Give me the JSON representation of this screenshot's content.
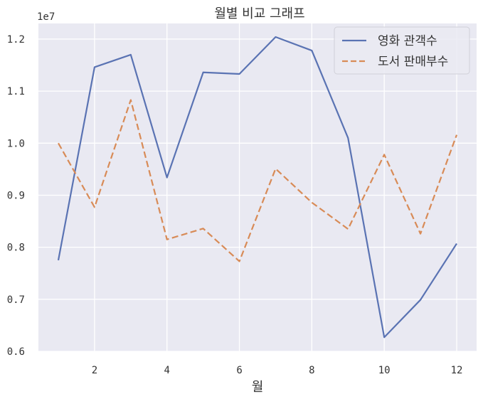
{
  "chart_data": {
    "type": "line",
    "title": "월별 비교 그래프",
    "xlabel": "월",
    "ylabel": "",
    "y_offset_label": "1e7",
    "x": [
      1,
      2,
      3,
      4,
      5,
      6,
      7,
      8,
      9,
      10,
      11,
      12
    ],
    "xticks": [
      2,
      4,
      6,
      8,
      10,
      12
    ],
    "xlim": [
      0.45,
      12.55
    ],
    "yticks": [
      6000000,
      7000000,
      8000000,
      9000000,
      10000000,
      11000000,
      12000000
    ],
    "ytick_labels": [
      "0.6",
      "0.7",
      "0.8",
      "0.9",
      "1.0",
      "1.1",
      "1.2"
    ],
    "ylim": [
      6000000,
      12300000
    ],
    "grid": true,
    "legend_position": "top-right",
    "series": [
      {
        "name": "영화 관객수",
        "style": "solid",
        "color": "#5a73b3",
        "values": [
          7750000,
          11460000,
          11700000,
          9340000,
          11360000,
          11330000,
          12040000,
          11780000,
          10100000,
          6270000,
          6990000,
          8070000
        ]
      },
      {
        "name": "도서 판매부수",
        "style": "dashed",
        "color": "#d88b57",
        "values": [
          10000000,
          8770000,
          10830000,
          8150000,
          8360000,
          7730000,
          9510000,
          8860000,
          8350000,
          9780000,
          8260000,
          10160000
        ]
      }
    ]
  },
  "colors": {
    "plot_background": "#e9e9f2",
    "grid": "#ffffff",
    "legend_background": "#eaeaf2",
    "legend_border": "#d0d0d8"
  }
}
